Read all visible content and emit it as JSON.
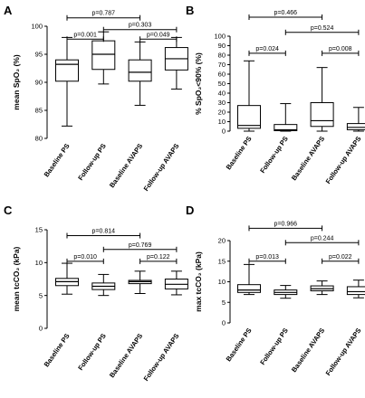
{
  "chart_data": [
    {
      "letter": "A",
      "type": "boxplot",
      "ylabel": "mean SpO₂ (%)",
      "ylim": [
        80,
        100
      ],
      "yticks": [
        "80",
        "85",
        "90",
        "95",
        "100"
      ],
      "categories": [
        "Baseline PS",
        "Follow-up PS",
        "Baseline AVAPS",
        "Follow-up AVAPS"
      ],
      "boxes": [
        {
          "min": 82.2,
          "q1": 90.2,
          "median": 93.2,
          "q3": 94.0,
          "max": 98.0
        },
        {
          "min": 89.7,
          "q1": 92.3,
          "median": 95.0,
          "q3": 97.4,
          "max": 99.0
        },
        {
          "min": 85.9,
          "q1": 90.2,
          "median": 91.8,
          "q3": 94.0,
          "max": 97.2
        },
        {
          "min": 88.8,
          "q1": 92.2,
          "median": 94.2,
          "q3": 96.2,
          "max": 98.0
        }
      ],
      "comparisons": [
        {
          "label": "p=0.787",
          "from": 0,
          "to": 2,
          "y": 101.5
        },
        {
          "label": "p=0.303",
          "from": 1,
          "to": 3,
          "y": 99.4
        },
        {
          "label": "p=0.001",
          "from": 0,
          "to": 1,
          "y": 97.7
        },
        {
          "label": "p=0.049",
          "from": 2,
          "to": 3,
          "y": 97.7
        }
      ]
    },
    {
      "letter": "B",
      "type": "boxplot",
      "ylabel": "% SpO₂<90% (%)",
      "ylim": [
        0,
        100
      ],
      "yticks": [
        "0",
        "10",
        "20",
        "30",
        "40",
        "50",
        "60",
        "70",
        "80",
        "90",
        "100"
      ],
      "categories": [
        "Baseline PS",
        "Follow-up PS",
        "Baseline AVAPS",
        "Follow-up AVAPS"
      ],
      "boxes": [
        {
          "min": 0,
          "q1": 3,
          "median": 6,
          "q3": 27,
          "max": 74
        },
        {
          "min": 0,
          "q1": 0.5,
          "median": 1.5,
          "q3": 7,
          "max": 29
        },
        {
          "min": 0,
          "q1": 5,
          "median": 11,
          "q3": 30,
          "max": 67
        },
        {
          "min": 0,
          "q1": 1.5,
          "median": 4,
          "q3": 8,
          "max": 25
        }
      ],
      "comparisons": [
        {
          "label": "p=0.466",
          "from": 0,
          "to": 2,
          "y": 120
        },
        {
          "label": "p=0.524",
          "from": 1,
          "to": 3,
          "y": 104
        },
        {
          "label": "p=0.024",
          "from": 0,
          "to": 1,
          "y": 82
        },
        {
          "label": "p=0.008",
          "from": 2,
          "to": 3,
          "y": 82
        }
      ]
    },
    {
      "letter": "C",
      "type": "boxplot",
      "ylabel": "mean tcCO₂ (kPa)",
      "ylim": [
        0,
        15
      ],
      "yticks": [
        "0",
        "5",
        "10",
        "15"
      ],
      "categories": [
        "Baseline PS",
        "Follow-up PS",
        "Baseline AVAPS",
        "Follow-up AVAPS"
      ],
      "boxes": [
        {
          "min": 5.2,
          "q1": 6.5,
          "median": 7.1,
          "q3": 7.6,
          "max": 9.9
        },
        {
          "min": 5.0,
          "q1": 5.9,
          "median": 6.4,
          "q3": 6.9,
          "max": 8.2
        },
        {
          "min": 5.3,
          "q1": 6.8,
          "median": 7.1,
          "q3": 7.3,
          "max": 8.7
        },
        {
          "min": 5.1,
          "q1": 6.0,
          "median": 6.7,
          "q3": 7.5,
          "max": 8.7
        }
      ],
      "comparisons": [
        {
          "label": "p=0.814",
          "from": 0,
          "to": 2,
          "y": 14.1
        },
        {
          "label": "p=0.769",
          "from": 1,
          "to": 3,
          "y": 12.0
        },
        {
          "label": "p=0.010",
          "from": 0,
          "to": 1,
          "y": 10.2
        },
        {
          "label": "p=0.122",
          "from": 2,
          "to": 3,
          "y": 10.2
        }
      ]
    },
    {
      "letter": "D",
      "type": "boxplot",
      "ylabel": "max tcCO₂ (kPa)",
      "ylim": [
        0,
        20
      ],
      "yticks": [
        "0",
        "5",
        "10",
        "15",
        "20"
      ],
      "categories": [
        "Baseline PS",
        "Follow-up PS",
        "Baseline AVAPS",
        "Follow-up AVAPS"
      ],
      "boxes": [
        {
          "min": 6.9,
          "q1": 7.4,
          "median": 8.0,
          "q3": 9.3,
          "max": 14.2
        },
        {
          "min": 6.0,
          "q1": 6.9,
          "median": 7.4,
          "q3": 8.0,
          "max": 9.1
        },
        {
          "min": 6.9,
          "q1": 7.8,
          "median": 8.3,
          "q3": 9.0,
          "max": 10.2
        },
        {
          "min": 6.1,
          "q1": 6.9,
          "median": 7.6,
          "q3": 8.8,
          "max": 10.4
        }
      ],
      "comparisons": [
        {
          "label": "p=0.966",
          "from": 0,
          "to": 2,
          "y": 23.0
        },
        {
          "label": "p=0.244",
          "from": 1,
          "to": 3,
          "y": 19.5
        },
        {
          "label": "p=0.013",
          "from": 0,
          "to": 1,
          "y": 15.0
        },
        {
          "label": "p=0.022",
          "from": 2,
          "to": 3,
          "y": 15.0
        }
      ]
    }
  ]
}
